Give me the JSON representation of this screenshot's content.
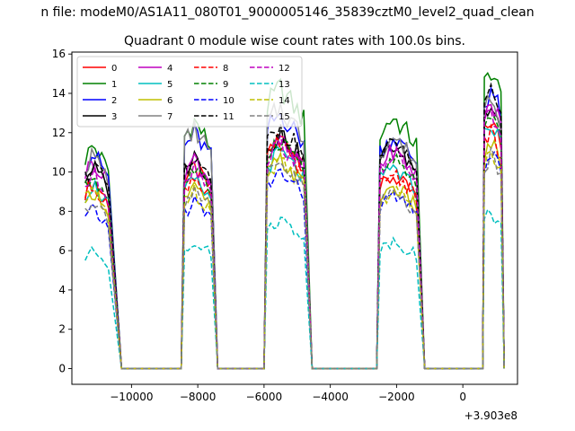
{
  "figure": {
    "suptitle": "n file: modeM0/AS1A11_080T01_9000005146_35839cztM0_level2_quad_clean"
  },
  "chart_data": {
    "type": "line",
    "title": "Quadrant 0 module wise count rates with 100.0s bins.",
    "xlabel": "",
    "ylabel": "",
    "x_offset_label": "+3.903e8",
    "xlim": [
      -11800,
      1650
    ],
    "ylim": [
      -0.8,
      16.1
    ],
    "xticks": [
      -10000,
      -8000,
      -6000,
      -4000,
      -2000,
      0
    ],
    "xtick_labels": [
      "−10000",
      "−8000",
      "−6000",
      "−4000",
      "−2000",
      "0"
    ],
    "yticks": [
      0,
      2,
      4,
      6,
      8,
      10,
      12,
      14,
      16
    ],
    "ytick_labels": [
      "0",
      "2",
      "4",
      "6",
      "8",
      "10",
      "12",
      "14",
      "16"
    ],
    "grid": false,
    "legend_position": "top-left",
    "legend_columns": 4,
    "segments": [
      {
        "start": -11400,
        "plateau_end": -10700,
        "drop_end": -10300,
        "gap_end": -8500
      },
      {
        "start": -8400,
        "plateau_end": -7550,
        "drop_end": -7400,
        "gap_end": -6000
      },
      {
        "start": -5900,
        "plateau_end": -4800,
        "drop_end": -4550,
        "gap_end": -2600
      },
      {
        "start": -2500,
        "plateau_end": -1350,
        "drop_end": -1150,
        "gap_end": 600
      },
      {
        "start": 650,
        "plateau_end": 1200,
        "drop_end": 1250,
        "gap_end": 1250
      }
    ],
    "series": [
      {
        "name": "0",
        "color": "#ff0000",
        "dash": "solid",
        "levels": [
          9.6,
          10.2,
          11.8,
          9.8,
          12.7
        ]
      },
      {
        "name": "1",
        "color": "#008000",
        "dash": "solid",
        "levels": [
          11.4,
          12.6,
          14.3,
          12.8,
          15.3
        ]
      },
      {
        "name": "2",
        "color": "#0000ff",
        "dash": "solid",
        "levels": [
          11.0,
          12.0,
          13.0,
          11.8,
          14.3
        ]
      },
      {
        "name": "3",
        "color": "#000000",
        "dash": "solid",
        "levels": [
          10.3,
          10.8,
          12.0,
          11.4,
          13.8
        ]
      },
      {
        "name": "4",
        "color": "#bf00bf",
        "dash": "solid",
        "levels": [
          10.6,
          10.7,
          11.5,
          11.1,
          13.7
        ]
      },
      {
        "name": "5",
        "color": "#00bfbf",
        "dash": "solid",
        "levels": [
          9.4,
          9.6,
          11.0,
          10.2,
          12.6
        ]
      },
      {
        "name": "6",
        "color": "#bfbf00",
        "dash": "solid",
        "levels": [
          9.1,
          9.2,
          10.6,
          9.3,
          11.5
        ]
      },
      {
        "name": "7",
        "color": "#808080",
        "dash": "solid",
        "levels": [
          10.9,
          12.2,
          13.3,
          11.8,
          14.1
        ]
      },
      {
        "name": "8",
        "color": "#ff0000",
        "dash": "dashed",
        "levels": [
          9.4,
          9.8,
          11.4,
          10.0,
          12.0
        ]
      },
      {
        "name": "9",
        "color": "#008000",
        "dash": "dashed",
        "levels": [
          9.8,
          10.1,
          11.7,
          10.6,
          12.8
        ]
      },
      {
        "name": "10",
        "color": "#0000ff",
        "dash": "dashed",
        "levels": [
          8.1,
          8.5,
          10.0,
          8.8,
          11.0
        ]
      },
      {
        "name": "11",
        "color": "#000000",
        "dash": "dashed",
        "levels": [
          10.4,
          10.6,
          12.3,
          11.4,
          13.9
        ]
      },
      {
        "name": "12",
        "color": "#bf00bf",
        "dash": "dashed",
        "levels": [
          9.9,
          10.3,
          11.5,
          10.9,
          13.1
        ]
      },
      {
        "name": "13",
        "color": "#00bfbf",
        "dash": "dashed",
        "levels": [
          6.0,
          6.5,
          7.6,
          6.5,
          8.0
        ]
      },
      {
        "name": "14",
        "color": "#bfbf00",
        "dash": "dashed",
        "levels": [
          9.0,
          9.0,
          10.7,
          9.1,
          11.3
        ]
      },
      {
        "name": "15",
        "color": "#808080",
        "dash": "dashed",
        "levels": [
          8.6,
          9.1,
          10.4,
          9.0,
          10.8
        ]
      }
    ]
  }
}
